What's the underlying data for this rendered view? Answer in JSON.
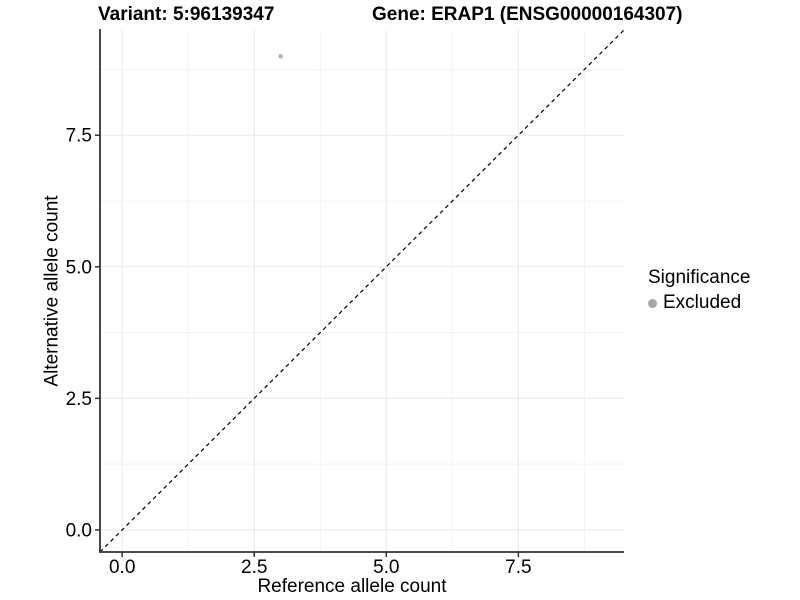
{
  "chart_data": {
    "type": "scatter",
    "titles": {
      "left": "Variant: 5:96139347",
      "right": "Gene: ERAP1 (ENSG00000164307)"
    },
    "xlabel": "Reference allele count",
    "ylabel": "Alternative allele count",
    "xlim": [
      -0.42,
      9.5
    ],
    "ylim": [
      -0.42,
      9.5
    ],
    "x_tick_labels": [
      "0.0",
      "2.5",
      "5.0",
      "7.5"
    ],
    "y_tick_labels": [
      "0.0",
      "2.5",
      "5.0",
      "7.5"
    ],
    "x_minor_gridlines": [
      1.25,
      3.75,
      6.25,
      8.75
    ],
    "y_minor_gridlines": [
      1.25,
      3.75,
      6.25,
      8.75
    ],
    "grid": {
      "major_color": "#e9e9e9",
      "minor_color": "#f3f3f3",
      "shown": true
    },
    "identity_line": {
      "equation": "y = x",
      "style": "dashed",
      "color": "#000000"
    },
    "points": [
      {
        "x": 3,
        "y": 9,
        "significance": "Excluded"
      }
    ],
    "point_color": "#b3b3b3",
    "axis_color": "#333333",
    "text_color": "#000000",
    "legend": {
      "title": "Significance",
      "position": "right",
      "entries": [
        {
          "label": "Excluded",
          "color": "#a6a6a6"
        }
      ]
    }
  }
}
